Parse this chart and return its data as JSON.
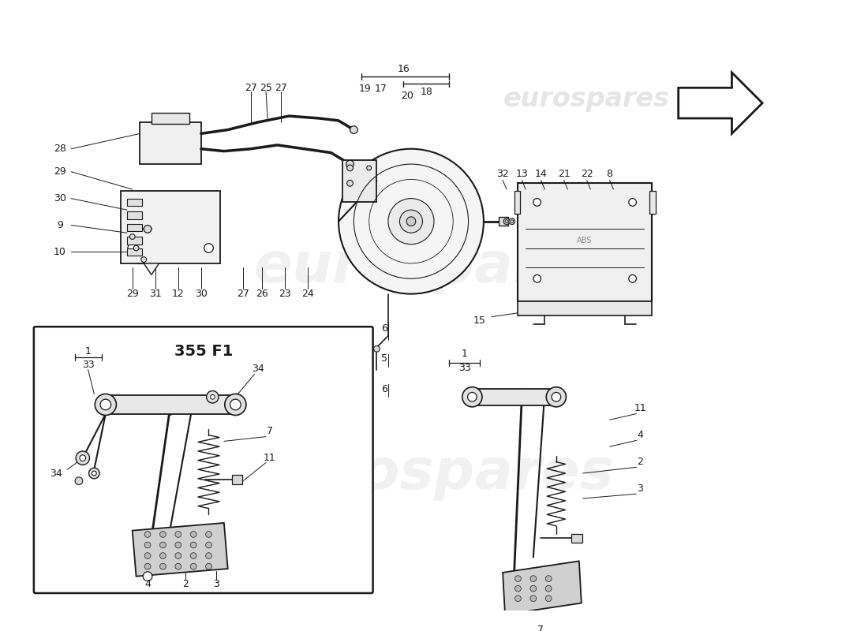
{
  "background_color": "#ffffff",
  "watermark_text": "eurospares",
  "watermark_color": "#c8c8c8",
  "line_color": "#1a1a1a",
  "label_color": "#1a1a1a",
  "label_fontsize": 8.5,
  "subbox_label": "355 F1",
  "subbox_label_fontsize": 14,
  "fig_width": 11.0,
  "fig_height": 8.0,
  "dpi": 100
}
